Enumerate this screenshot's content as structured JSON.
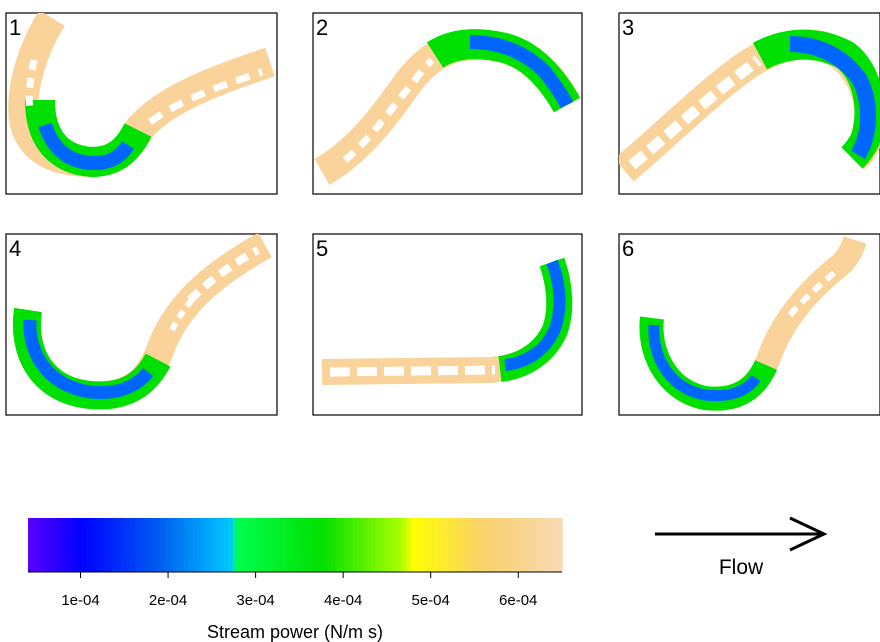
{
  "chart_data": {
    "type": "heatmap",
    "panels": [
      {
        "label": "1"
      },
      {
        "label": "2"
      },
      {
        "label": "3"
      },
      {
        "label": "4"
      },
      {
        "label": "5"
      },
      {
        "label": "6"
      }
    ],
    "colorbar": {
      "title": "Stream power (N/m s)",
      "ticks": [
        {
          "value": 0.0001,
          "label": "1e-04"
        },
        {
          "value": 0.0002,
          "label": "2e-04"
        },
        {
          "value": 0.0003,
          "label": "3e-04"
        },
        {
          "value": 0.0004,
          "label": "4e-04"
        },
        {
          "value": 0.0005,
          "label": "5e-04"
        },
        {
          "value": 0.0006,
          "label": "6e-04"
        }
      ],
      "range": [
        4e-05,
        0.00065
      ],
      "colors": [
        "#5a00ff",
        "#0000ff",
        "#0060f0",
        "#00c8ff",
        "#00ff50",
        "#00e000",
        "#aaff00",
        "#ffff00",
        "#f8d26a",
        "#f8d9b4"
      ],
      "stops": [
        0.0,
        0.1,
        0.25,
        0.38,
        0.39,
        0.55,
        0.7,
        0.72,
        0.85,
        1.0
      ]
    },
    "flow": {
      "label": "Flow"
    }
  }
}
